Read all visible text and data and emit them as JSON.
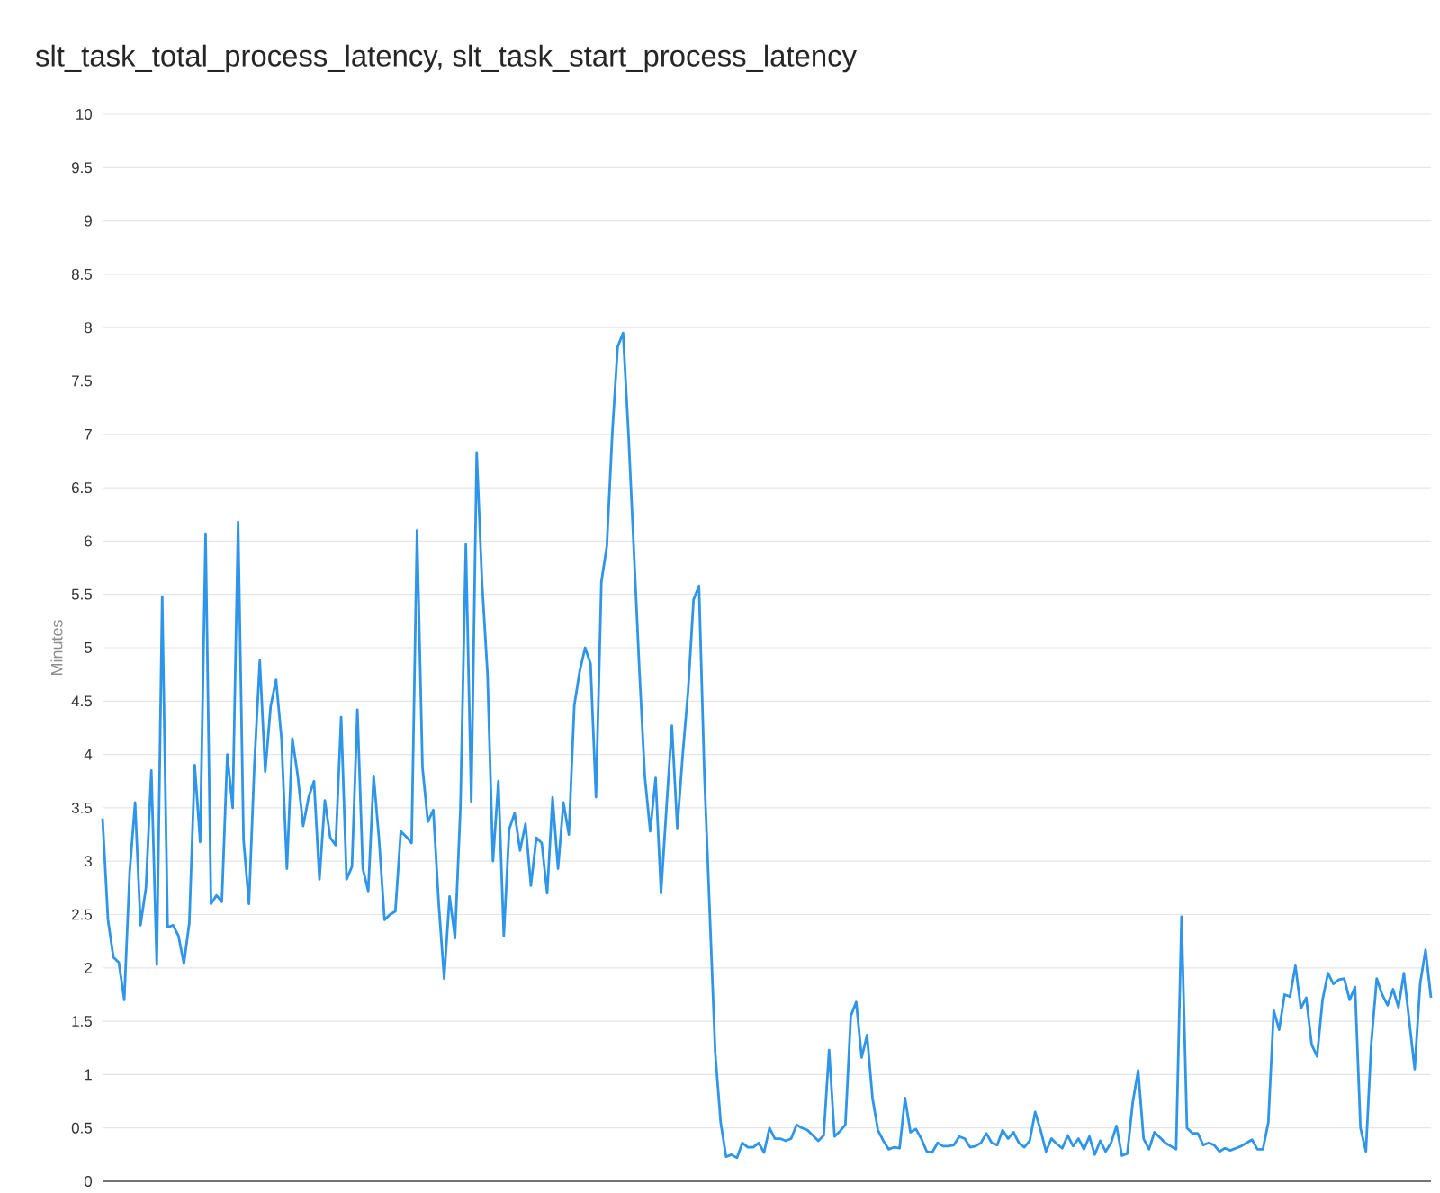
{
  "chart_data": {
    "type": "line",
    "title": "slt_task_total_process_latency, slt_task_start_process_latency",
    "ylabel": "Minutes",
    "categories": [
      null,
      null,
      null,
      null,
      null,
      null,
      null,
      null,
      null,
      null,
      null,
      null,
      null,
      null,
      null,
      null,
      null,
      null,
      null,
      null,
      null,
      null,
      null,
      null,
      null,
      null,
      null,
      null,
      null,
      null,
      null,
      null,
      null,
      null,
      null,
      null,
      null,
      null,
      null,
      null,
      null,
      null,
      null,
      null,
      null,
      null,
      null,
      null,
      null,
      null,
      null,
      null,
      null,
      null,
      null,
      null,
      null,
      null,
      null,
      null,
      null,
      null,
      null,
      null,
      null,
      null,
      null,
      null,
      null,
      null,
      null,
      null,
      null,
      null,
      null,
      null,
      null,
      null,
      null,
      null,
      null,
      null,
      null,
      null,
      null,
      null,
      null,
      null,
      null,
      null,
      null,
      null,
      null,
      null,
      null,
      null,
      null,
      null,
      null,
      null,
      null,
      null,
      null,
      null,
      null,
      null,
      null,
      null,
      null,
      null,
      null,
      null,
      null,
      null,
      null,
      null,
      null,
      null,
      null,
      null,
      null,
      null,
      null,
      null,
      null,
      null,
      null,
      null,
      null,
      null,
      null,
      null,
      null,
      null,
      null,
      null,
      null,
      null,
      null,
      null,
      null,
      null,
      null,
      null,
      null,
      null,
      null,
      null,
      null,
      null,
      null,
      null,
      null,
      null,
      null,
      null,
      null,
      null,
      null,
      null,
      null,
      null,
      null,
      null,
      null,
      null,
      null,
      null,
      null,
      null,
      null,
      null,
      null,
      null,
      null,
      null,
      null,
      null,
      null,
      null,
      null,
      null,
      null,
      null,
      null,
      null,
      null,
      null,
      null,
      null,
      null,
      null,
      null,
      null,
      null,
      null,
      null,
      null,
      null,
      null,
      null,
      null,
      null,
      null,
      null,
      null,
      null,
      null,
      null,
      null,
      null,
      null,
      null,
      null,
      null,
      null,
      null,
      null,
      null,
      null,
      null,
      null,
      null,
      null,
      null,
      null,
      null,
      null,
      null,
      null,
      null,
      null,
      null,
      null,
      null,
      null,
      null,
      null,
      null,
      null,
      null,
      null,
      null,
      null,
      null,
      null
    ],
    "series": [
      {
        "color": "#2f95e9",
        "values": [
          3.4,
          2.45,
          2.1,
          2.05,
          1.7,
          2.9,
          3.55,
          2.4,
          2.75,
          3.85,
          2.03,
          5.48,
          2.38,
          2.4,
          2.3,
          2.04,
          2.42,
          3.9,
          3.18,
          6.07,
          2.6,
          2.68,
          2.62,
          4.0,
          3.5,
          6.18,
          3.2,
          2.6,
          3.9,
          4.88,
          3.84,
          4.45,
          4.7,
          4.15,
          2.93,
          4.15,
          3.8,
          3.33,
          3.6,
          3.75,
          2.83,
          3.57,
          3.22,
          3.15,
          4.35,
          2.83,
          2.95,
          4.42,
          2.93,
          2.72,
          3.8,
          3.2,
          2.45,
          2.5,
          2.53,
          3.28,
          3.23,
          3.17,
          6.1,
          3.88,
          3.37,
          3.48,
          2.6,
          1.9,
          2.67,
          2.28,
          3.5,
          5.97,
          3.56,
          6.83,
          5.6,
          4.75,
          3.0,
          3.75,
          2.3,
          3.3,
          3.45,
          3.1,
          3.35,
          2.77,
          3.22,
          3.17,
          2.7,
          3.6,
          2.93,
          3.55,
          3.25,
          4.46,
          4.78,
          5.0,
          4.85,
          3.6,
          5.62,
          5.95,
          7.0,
          7.82,
          7.95,
          7.0,
          5.9,
          4.8,
          3.8,
          3.28,
          3.78,
          2.7,
          3.5,
          4.27,
          3.31,
          4.0,
          4.6,
          5.45,
          5.58,
          3.8,
          2.5,
          1.2,
          0.55,
          0.23,
          0.25,
          0.22,
          0.36,
          0.32,
          0.32,
          0.36,
          0.27,
          0.5,
          0.4,
          0.4,
          0.38,
          0.4,
          0.53,
          0.5,
          0.48,
          0.43,
          0.38,
          0.43,
          1.23,
          0.42,
          0.47,
          0.53,
          1.55,
          1.68,
          1.16,
          1.37,
          0.78,
          0.48,
          0.38,
          0.3,
          0.32,
          0.31,
          0.78,
          0.46,
          0.49,
          0.4,
          0.28,
          0.27,
          0.36,
          0.33,
          0.33,
          0.34,
          0.42,
          0.4,
          0.32,
          0.33,
          0.36,
          0.45,
          0.36,
          0.34,
          0.48,
          0.4,
          0.46,
          0.36,
          0.32,
          0.38,
          0.65,
          0.48,
          0.28,
          0.4,
          0.35,
          0.31,
          0.43,
          0.33,
          0.4,
          0.3,
          0.42,
          0.25,
          0.38,
          0.28,
          0.36,
          0.52,
          0.24,
          0.26,
          0.74,
          1.04,
          0.4,
          0.3,
          0.46,
          0.41,
          0.36,
          0.33,
          0.3,
          2.48,
          0.5,
          0.45,
          0.45,
          0.34,
          0.36,
          0.34,
          0.28,
          0.31,
          0.29,
          0.31,
          0.33,
          0.36,
          0.39,
          0.3,
          0.3,
          0.55,
          1.6,
          1.42,
          1.75,
          1.73,
          2.02,
          1.62,
          1.72,
          1.28,
          1.17,
          1.7,
          1.95,
          1.85,
          1.89,
          1.9,
          1.7,
          1.82,
          0.5,
          0.28,
          1.3,
          1.9,
          1.75,
          1.65,
          1.8,
          1.63,
          1.95,
          1.5,
          1.05,
          1.85,
          2.17,
          1.72
        ]
      }
    ],
    "ylim": [
      0,
      10
    ],
    "yticks": [
      0,
      0.5,
      1,
      1.5,
      2,
      2.5,
      3,
      3.5,
      4,
      4.5,
      5,
      5.5,
      6,
      6.5,
      7,
      7.5,
      8,
      8.5,
      9,
      9.5,
      10
    ],
    "grid": "y",
    "tick_labels": "y"
  }
}
